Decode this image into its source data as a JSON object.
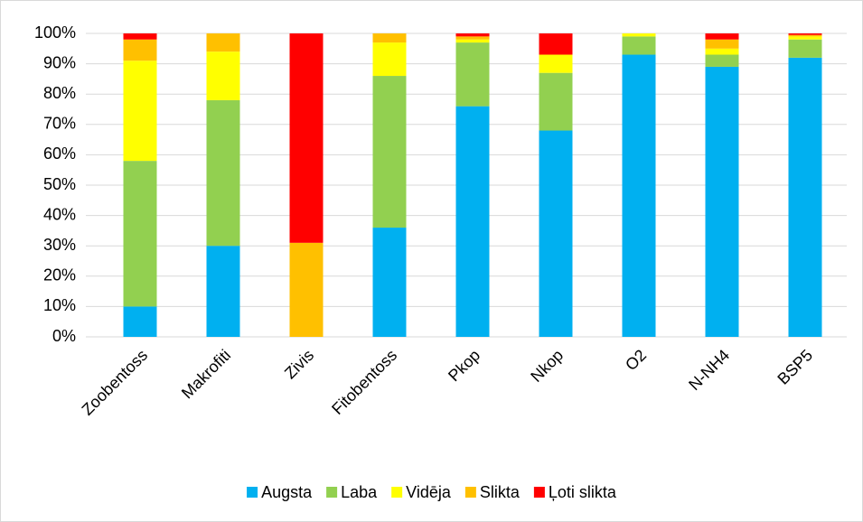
{
  "chart_data": {
    "type": "stacked_bar",
    "categories": [
      "Zoobentoss",
      "Makrofiti",
      "Zivis",
      "Fitobentoss",
      "Pkop",
      "Nkop",
      "O2",
      "N-NH4",
      "BSP5"
    ],
    "series": [
      {
        "name": "Augsta",
        "color": "#00b0f0",
        "values": [
          10,
          30,
          0,
          36,
          76,
          68,
          93,
          89,
          92
        ]
      },
      {
        "name": "Laba",
        "color": "#92d050",
        "values": [
          48,
          48,
          0,
          50,
          21,
          19,
          6,
          4,
          6
        ]
      },
      {
        "name": "Vidēja",
        "color": "#ffff00",
        "values": [
          33,
          16,
          0,
          11,
          1,
          6,
          1,
          2,
          1
        ]
      },
      {
        "name": "Slikta",
        "color": "#ffc000",
        "values": [
          7,
          6,
          31,
          3,
          1,
          0,
          0,
          3,
          0.5
        ]
      },
      {
        "name": "Ļoti slikta",
        "color": "#ff0000",
        "values": [
          2,
          0,
          69,
          0,
          1,
          7,
          0,
          2,
          0.5
        ]
      }
    ],
    "ylim": [
      0,
      100
    ],
    "yticks": [
      {
        "value": 0,
        "label": "0%"
      },
      {
        "value": 10,
        "label": "10%"
      },
      {
        "value": 20,
        "label": "20%"
      },
      {
        "value": 30,
        "label": "30%"
      },
      {
        "value": 40,
        "label": "40%"
      },
      {
        "value": 50,
        "label": "50%"
      },
      {
        "value": 60,
        "label": "60%"
      },
      {
        "value": 70,
        "label": "70%"
      },
      {
        "value": 80,
        "label": "80%"
      },
      {
        "value": 90,
        "label": "90%"
      },
      {
        "value": 100,
        "label": "100%"
      }
    ],
    "grid": true,
    "legend": "bottom"
  }
}
